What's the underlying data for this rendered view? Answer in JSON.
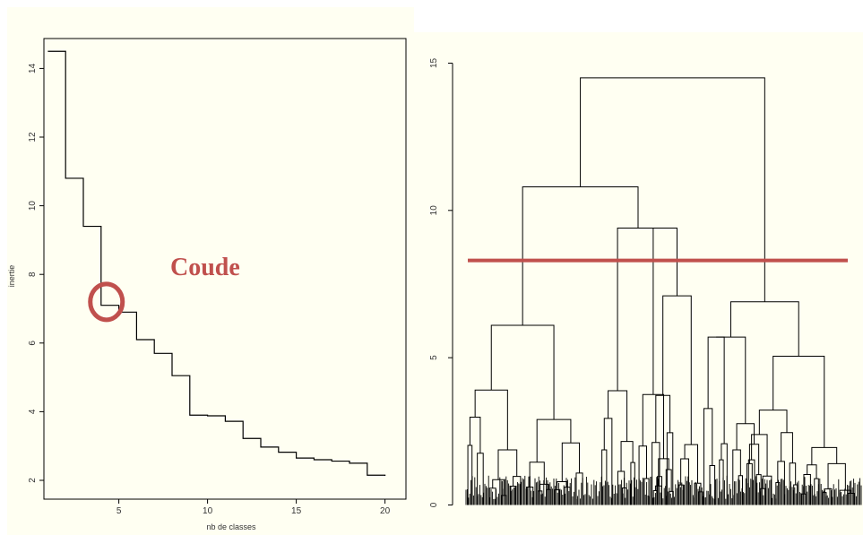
{
  "colors": {
    "annotation": "#c0504d",
    "background": "#fffff2",
    "line": "#000000"
  },
  "chart_data": [
    {
      "type": "line",
      "step": true,
      "xlabel": "nb de classes",
      "ylabel": "inertie",
      "xlim": [
        1,
        20
      ],
      "ylim": [
        2,
        14.5
      ],
      "xticks": [
        5,
        10,
        15,
        20
      ],
      "yticks": [
        2,
        4,
        6,
        8,
        10,
        12,
        14
      ],
      "x": [
        1,
        2,
        3,
        4,
        5,
        6,
        7,
        8,
        9,
        10,
        11,
        12,
        13,
        14,
        15,
        16,
        17,
        18,
        19,
        20
      ],
      "y": [
        14.5,
        10.8,
        9.4,
        7.1,
        6.9,
        6.1,
        5.7,
        5.05,
        3.9,
        3.88,
        3.72,
        3.22,
        2.97,
        2.82,
        2.65,
        2.6,
        2.56,
        2.5,
        2.15,
        2.13
      ],
      "annotation": {
        "text": "Coude",
        "marker": "circle",
        "x": 4.3,
        "y": 7.2
      },
      "grid": false
    },
    {
      "type": "dendrogram",
      "ylim": [
        0,
        15
      ],
      "yticks": [
        0,
        5,
        10,
        15
      ],
      "cut_height": 8.3,
      "cut_color": "#c0504d",
      "merge_heights": [
        14.5,
        10.8,
        9.4,
        7.1,
        6.9,
        6.1,
        5.7,
        5.05,
        3.9,
        3.88,
        3.72,
        3.22,
        2.97,
        2.82,
        2.65,
        2.6,
        2.56,
        2.5,
        2.15,
        2.13
      ],
      "grid": false
    }
  ]
}
